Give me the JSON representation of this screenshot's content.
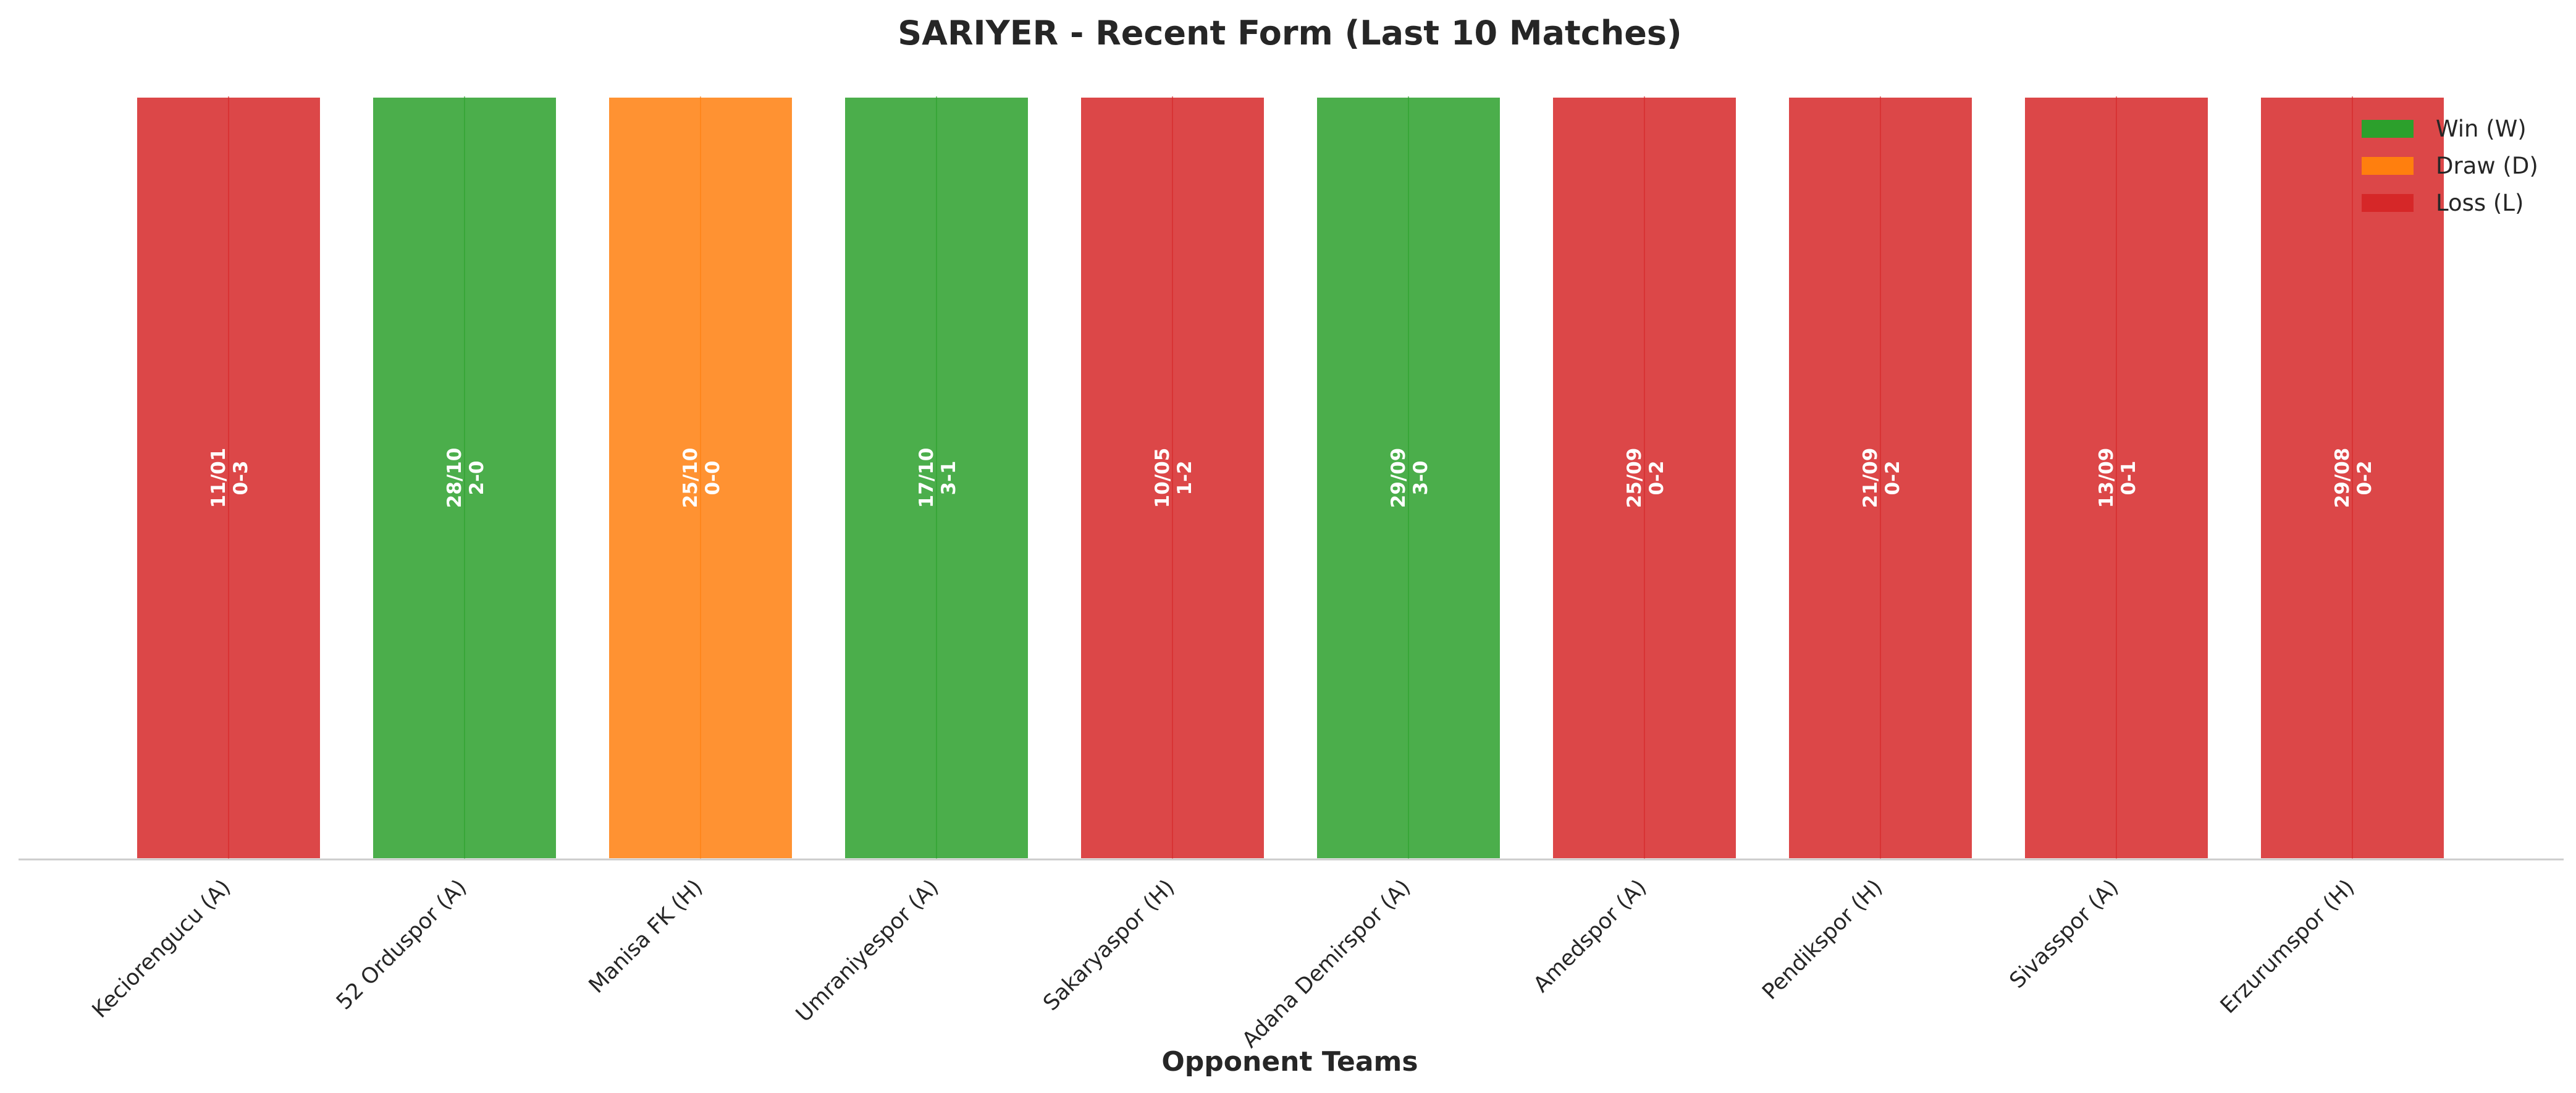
{
  "chart_data": {
    "type": "bar",
    "title": "SARIYER - Recent Form (Last 10 Matches)",
    "xlabel": "Opponent Teams",
    "ylabel": "",
    "grid": false,
    "legend_position": "top-right",
    "ylim": [
      0,
      1
    ],
    "categories": [
      "Keciorengucu (A)",
      "52 Orduspor (A)",
      "Manisa FK (H)",
      "Umraniyespor (A)",
      "Sakaryaspor (H)",
      "Adana Demirspor (A)",
      "Amedspor (A)",
      "Pendikspor (H)",
      "Sivasspor (A)",
      "Erzurumspor (H)"
    ],
    "values": [
      1,
      1,
      1,
      1,
      1,
      1,
      1,
      1,
      1,
      1
    ],
    "results": [
      "L",
      "W",
      "D",
      "W",
      "L",
      "W",
      "L",
      "L",
      "L",
      "L"
    ],
    "dates": [
      "11/01",
      "28/10",
      "25/10",
      "17/10",
      "10/05",
      "29/09",
      "25/09",
      "21/09",
      "13/09",
      "29/08"
    ],
    "scores": [
      "0-3",
      "2-0",
      "0-0",
      "3-1",
      "1-2",
      "3-0",
      "0-2",
      "0-2",
      "0-1",
      "0-2"
    ],
    "legend": [
      {
        "key": "W",
        "label": "Win (W)",
        "color": "#2ca02c"
      },
      {
        "key": "D",
        "label": "Draw (D)",
        "color": "#ff7f0e"
      },
      {
        "key": "L",
        "label": "Loss (L)",
        "color": "#d62728"
      }
    ],
    "colors": {
      "W": "#2ca02c",
      "D": "#ff7f0e",
      "L": "#d62728"
    }
  }
}
